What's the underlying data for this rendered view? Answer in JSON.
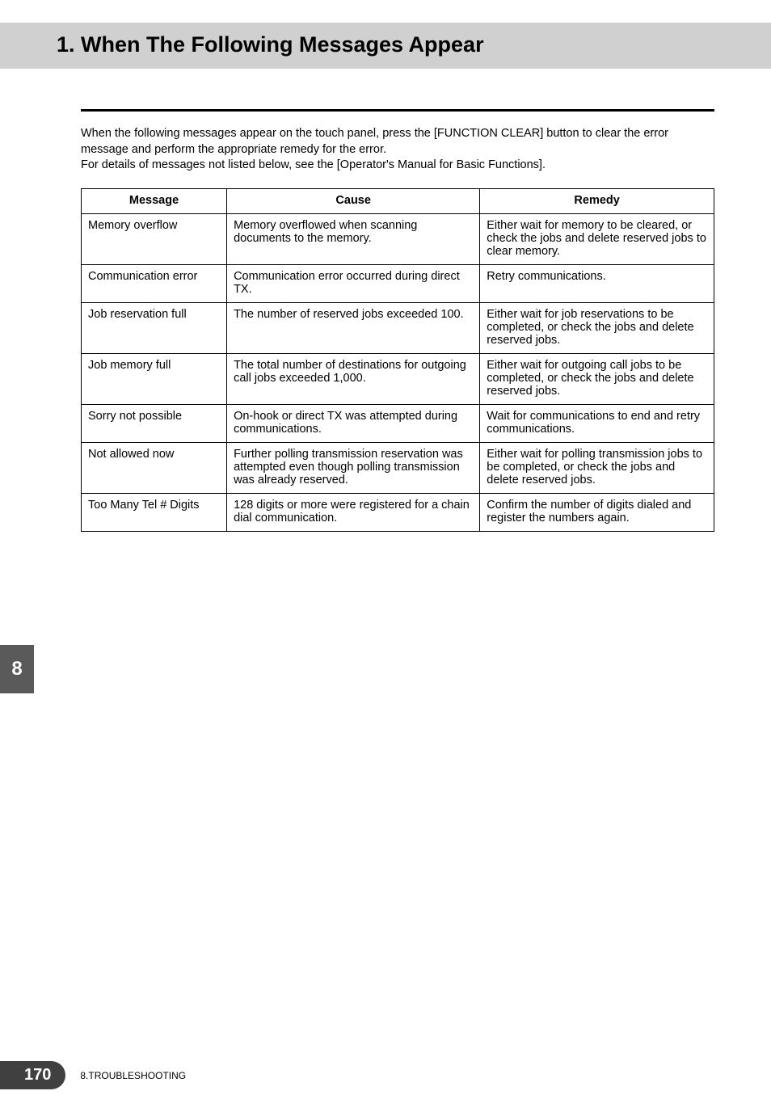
{
  "header": {
    "title": "1. When The Following Messages Appear"
  },
  "intro": {
    "line1": "When the following messages appear on the touch panel, press the [FUNCTION CLEAR] button to clear the error message and perform the appropriate remedy for the error.",
    "line2": "For details of messages not listed below, see the [Operator's Manual for Basic Functions]."
  },
  "table": {
    "headers": {
      "message": "Message",
      "cause": "Cause",
      "remedy": "Remedy"
    },
    "rows": [
      {
        "message": "Memory overflow",
        "cause": "Memory overflowed when scanning documents to the memory.",
        "remedy": "Either wait for memory to be cleared, or check the jobs and delete reserved jobs to clear memory."
      },
      {
        "message": "Communication error",
        "cause": "Communication error occurred during direct TX.",
        "remedy": "Retry communications."
      },
      {
        "message": "Job reservation full",
        "cause": "The number of reserved jobs exceeded 100.",
        "remedy": "Either wait for job reservations to be completed, or check the jobs and delete reserved jobs."
      },
      {
        "message": "Job memory full",
        "cause": "The total number of destinations for outgoing call jobs exceeded 1,000.",
        "remedy": "Either wait for outgoing call jobs to be completed, or check the jobs and delete reserved jobs."
      },
      {
        "message": "Sorry not possible",
        "cause": "On-hook or direct TX was attempted during communications.",
        "remedy": "Wait for communications to end and retry communications."
      },
      {
        "message": "Not allowed now",
        "cause": "Further polling transmission reservation was attempted even though polling transmission was already reserved.",
        "remedy": "Either wait for polling transmission jobs to be completed, or check the jobs and delete reserved jobs."
      },
      {
        "message": "Too Many Tel # Digits",
        "cause": "128 digits or more were registered for a chain dial communication.",
        "remedy": "Confirm the number of digits dialed and register the numbers again."
      }
    ]
  },
  "side_tab": {
    "number": "8"
  },
  "footer": {
    "page_number": "170",
    "section": "8.TROUBLESHOOTING"
  },
  "style": {
    "header_bg": "#d0d0d0",
    "header_fontsize": 27,
    "body_fontsize": 14.5,
    "tab_bg": "#5a5a5a",
    "tab_color": "#ffffff",
    "pagenum_bg": "#404040",
    "pagenum_color": "#ffffff",
    "rule_width": 3,
    "border_color": "#000000"
  }
}
